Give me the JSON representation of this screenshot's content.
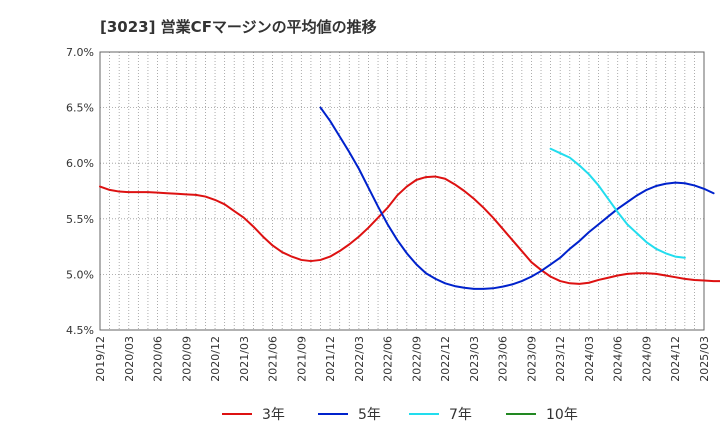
{
  "chart_data": {
    "type": "line",
    "title": "[3023]  営業CFマージンの平均値の推移",
    "xlabel": "",
    "ylabel": "",
    "ylim": [
      4.5,
      7.0
    ],
    "yticks": [
      "7.0%",
      "6.5%",
      "6.0%",
      "5.5%",
      "5.0%",
      "4.5%"
    ],
    "ytick_values": [
      7.0,
      6.5,
      6.0,
      5.5,
      5.0,
      4.5
    ],
    "xticks": [
      "2019/12",
      "2020/03",
      "2020/06",
      "2020/09",
      "2020/12",
      "2021/03",
      "2021/06",
      "2021/09",
      "2021/12",
      "2022/03",
      "2022/06",
      "2022/09",
      "2022/12",
      "2023/03",
      "2023/06",
      "2023/09",
      "2023/12",
      "2024/03",
      "2024/06",
      "2024/09",
      "2024/12",
      "2025/03"
    ],
    "x_range": [
      "2019-12",
      "2025-03"
    ],
    "grid": true,
    "legend_position": "bottom",
    "series": [
      {
        "name": "3年",
        "color": "#dd1111",
        "points": [
          [
            "2019-12",
            5.79
          ],
          [
            "2020-01",
            5.76
          ],
          [
            "2020-02",
            5.745
          ],
          [
            "2020-03",
            5.74
          ],
          [
            "2020-04",
            5.74
          ],
          [
            "2020-05",
            5.74
          ],
          [
            "2020-06",
            5.735
          ],
          [
            "2020-07",
            5.73
          ],
          [
            "2020-08",
            5.725
          ],
          [
            "2020-09",
            5.72
          ],
          [
            "2020-10",
            5.715
          ],
          [
            "2020-11",
            5.7
          ],
          [
            "2020-12",
            5.67
          ],
          [
            "2021-01",
            5.63
          ],
          [
            "2021-02",
            5.57
          ],
          [
            "2021-03",
            5.51
          ],
          [
            "2021-04",
            5.43
          ],
          [
            "2021-05",
            5.34
          ],
          [
            "2021-06",
            5.26
          ],
          [
            "2021-07",
            5.2
          ],
          [
            "2021-08",
            5.16
          ],
          [
            "2021-09",
            5.13
          ],
          [
            "2021-10",
            5.12
          ],
          [
            "2021-11",
            5.13
          ],
          [
            "2021-12",
            5.16
          ],
          [
            "2022-01",
            5.21
          ],
          [
            "2022-02",
            5.27
          ],
          [
            "2022-03",
            5.34
          ],
          [
            "2022-04",
            5.42
          ],
          [
            "2022-05",
            5.51
          ],
          [
            "2022-06",
            5.6
          ],
          [
            "2022-07",
            5.71
          ],
          [
            "2022-08",
            5.79
          ],
          [
            "2022-09",
            5.85
          ],
          [
            "2022-10",
            5.875
          ],
          [
            "2022-11",
            5.88
          ],
          [
            "2022-12",
            5.86
          ],
          [
            "2023-01",
            5.81
          ],
          [
            "2023-02",
            5.75
          ],
          [
            "2023-03",
            5.68
          ],
          [
            "2023-04",
            5.6
          ],
          [
            "2023-05",
            5.51
          ],
          [
            "2023-06",
            5.41
          ],
          [
            "2023-07",
            5.31
          ],
          [
            "2023-08",
            5.21
          ],
          [
            "2023-09",
            5.11
          ],
          [
            "2023-10",
            5.04
          ],
          [
            "2023-11",
            4.98
          ],
          [
            "2023-12",
            4.94
          ],
          [
            "2024-01",
            4.92
          ],
          [
            "2024-02",
            4.915
          ],
          [
            "2024-03",
            4.925
          ],
          [
            "2024-04",
            4.95
          ],
          [
            "2024-05",
            4.97
          ],
          [
            "2024-06",
            4.99
          ],
          [
            "2024-07",
            5.005
          ],
          [
            "2024-08",
            5.01
          ],
          [
            "2024-09",
            5.01
          ],
          [
            "2024-10",
            5.005
          ],
          [
            "2024-11",
            4.99
          ],
          [
            "2024-12",
            4.975
          ],
          [
            "2025-01",
            4.96
          ],
          [
            "2025-02",
            4.95
          ],
          [
            "2025-03",
            4.945
          ],
          [
            "2025-04",
            4.94
          ],
          [
            "2025-05",
            4.94
          ],
          [
            "2025-06",
            4.935
          ],
          [
            "2025-07",
            4.94
          ]
        ]
      },
      {
        "name": "5年",
        "color": "#0022cc",
        "points": [
          [
            "2021-11",
            6.5
          ],
          [
            "2021-12",
            6.38
          ],
          [
            "2022-01",
            6.24
          ],
          [
            "2022-02",
            6.1
          ],
          [
            "2022-03",
            5.95
          ],
          [
            "2022-04",
            5.78
          ],
          [
            "2022-05",
            5.61
          ],
          [
            "2022-06",
            5.45
          ],
          [
            "2022-07",
            5.31
          ],
          [
            "2022-08",
            5.19
          ],
          [
            "2022-09",
            5.09
          ],
          [
            "2022-10",
            5.01
          ],
          [
            "2022-11",
            4.96
          ],
          [
            "2022-12",
            4.92
          ],
          [
            "2023-01",
            4.895
          ],
          [
            "2023-02",
            4.88
          ],
          [
            "2023-03",
            4.87
          ],
          [
            "2023-04",
            4.87
          ],
          [
            "2023-05",
            4.875
          ],
          [
            "2023-06",
            4.89
          ],
          [
            "2023-07",
            4.91
          ],
          [
            "2023-08",
            4.94
          ],
          [
            "2023-09",
            4.98
          ],
          [
            "2023-10",
            5.03
          ],
          [
            "2023-11",
            5.09
          ],
          [
            "2023-12",
            5.15
          ],
          [
            "2024-01",
            5.23
          ],
          [
            "2024-02",
            5.3
          ],
          [
            "2024-03",
            5.38
          ],
          [
            "2024-04",
            5.45
          ],
          [
            "2024-05",
            5.52
          ],
          [
            "2024-06",
            5.59
          ],
          [
            "2024-07",
            5.65
          ],
          [
            "2024-08",
            5.71
          ],
          [
            "2024-09",
            5.76
          ],
          [
            "2024-10",
            5.795
          ],
          [
            "2024-11",
            5.815
          ],
          [
            "2024-12",
            5.825
          ],
          [
            "2025-01",
            5.82
          ],
          [
            "2025-02",
            5.8
          ],
          [
            "2025-03",
            5.77
          ],
          [
            "2025-04",
            5.73
          ]
        ]
      },
      {
        "name": "7年",
        "color": "#22ddee",
        "points": [
          [
            "2023-11",
            6.13
          ],
          [
            "2023-12",
            6.09
          ],
          [
            "2024-01",
            6.05
          ],
          [
            "2024-02",
            5.98
          ],
          [
            "2024-03",
            5.9
          ],
          [
            "2024-04",
            5.8
          ],
          [
            "2024-05",
            5.68
          ],
          [
            "2024-06",
            5.56
          ],
          [
            "2024-07",
            5.45
          ],
          [
            "2024-08",
            5.37
          ],
          [
            "2024-09",
            5.29
          ],
          [
            "2024-10",
            5.23
          ],
          [
            "2024-11",
            5.19
          ],
          [
            "2024-12",
            5.16
          ],
          [
            "2025-01",
            5.15
          ]
        ]
      },
      {
        "name": "10年",
        "color": "#228822",
        "points": []
      }
    ]
  }
}
